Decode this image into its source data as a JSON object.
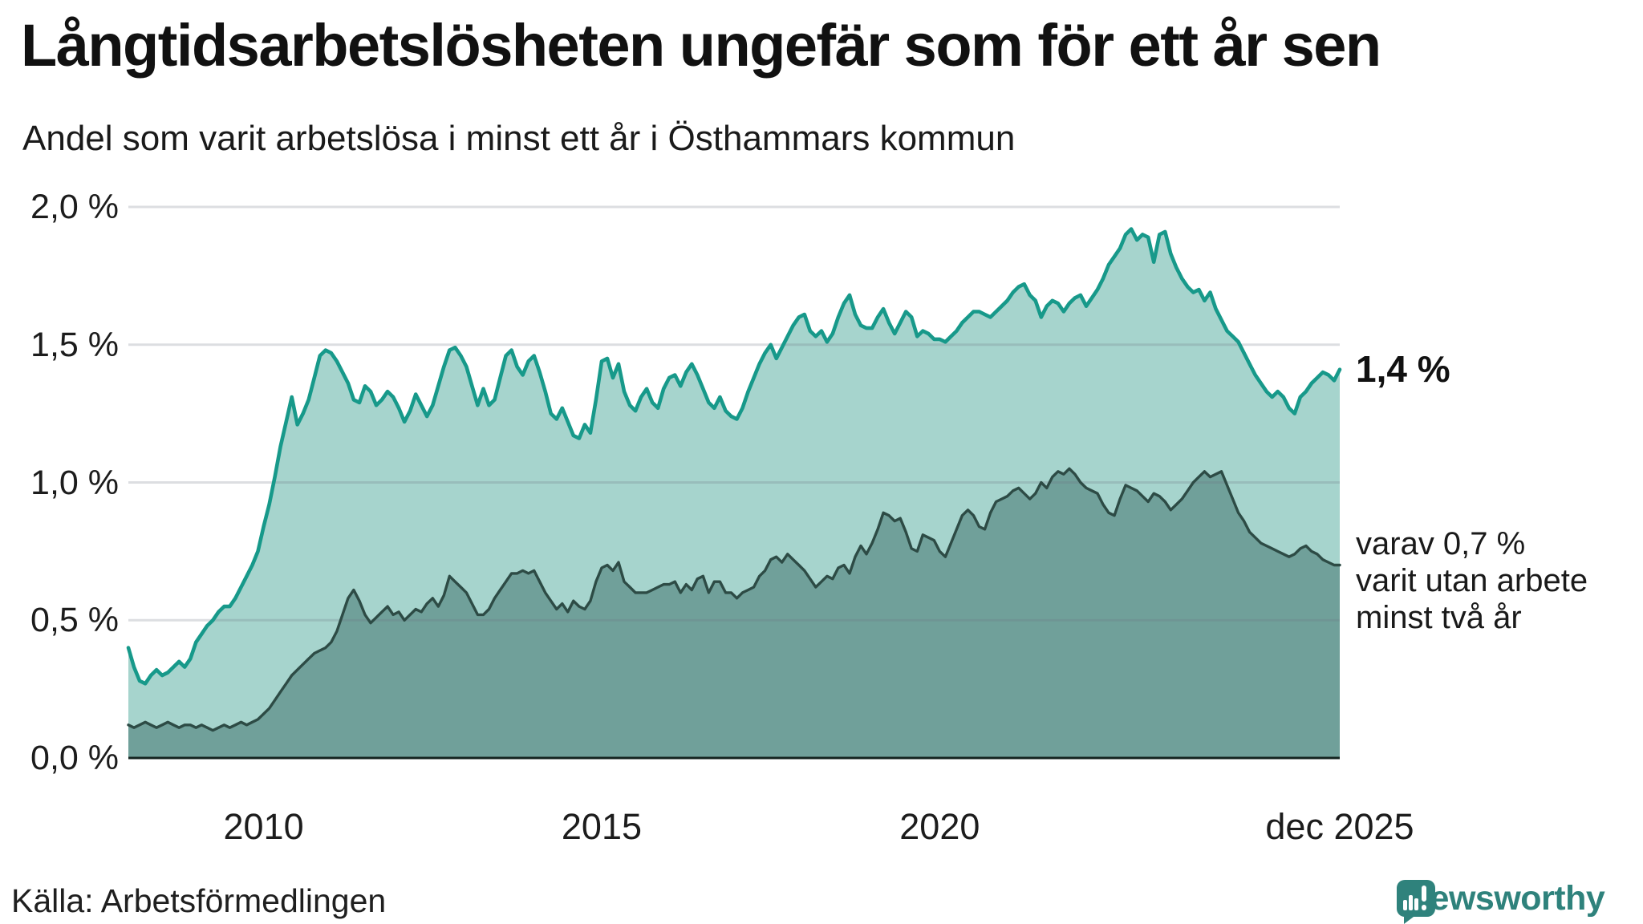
{
  "title": "Långtidsarbetslösheten ungefär som för ett år sen",
  "subtitle": "Andel som varit arbetslösa i minst ett år i Östhammars kommun",
  "source": "Källa: Arbetsförmedlingen",
  "logo": {
    "text": "Newsworthy"
  },
  "annotations": {
    "latest_total": "1,4 %",
    "secondary_lines": [
      "varav 0,7 %",
      "varit utan arbete",
      "minst två år"
    ]
  },
  "colors": {
    "line_total": "#17998a",
    "fill_total": "#a6d4cd",
    "line_two_year": "#2d4b45",
    "fill_two_year": "#70a09a",
    "grid_overlay": "rgba(108,116,130,0.24)",
    "axis_line": "#13231f",
    "brand_teal": "#2f827c",
    "text": "#1a1a1a"
  },
  "chart_data": {
    "type": "area",
    "title": "Långtidsarbetslösheten ungefär som för ett år sen",
    "subtitle": "Andel som varit arbetslösa i minst ett år i Östhammars kommun",
    "unit": "%",
    "x_start": "2008-01",
    "x_end": "2025-12",
    "points_per_year": 12,
    "ylim": [
      0,
      2
    ],
    "grid": true,
    "y_ticks": [
      {
        "value": 0.0,
        "label": "0,0 %"
      },
      {
        "value": 0.5,
        "label": "0,5 %"
      },
      {
        "value": 1.0,
        "label": "1,0 %"
      },
      {
        "value": 1.5,
        "label": "1,5 %"
      },
      {
        "value": 2.0,
        "label": "2,0 %"
      }
    ],
    "x_ticks": [
      {
        "year": 2010.0,
        "label": "2010"
      },
      {
        "year": 2015.0,
        "label": "2015"
      },
      {
        "year": 2020.0,
        "label": "2020"
      },
      {
        "year": 2025.9167,
        "label": "dec 2025"
      }
    ],
    "series": [
      {
        "name": "Andel som varit arbetslösa minst ett år",
        "last_value_label": "1,4 %",
        "values": [
          0.4,
          0.33,
          0.28,
          0.27,
          0.3,
          0.32,
          0.3,
          0.31,
          0.33,
          0.35,
          0.33,
          0.36,
          0.42,
          0.45,
          0.48,
          0.5,
          0.53,
          0.55,
          0.55,
          0.58,
          0.62,
          0.66,
          0.7,
          0.75,
          0.84,
          0.92,
          1.02,
          1.13,
          1.22,
          1.31,
          1.21,
          1.25,
          1.3,
          1.38,
          1.46,
          1.48,
          1.47,
          1.44,
          1.4,
          1.36,
          1.3,
          1.29,
          1.35,
          1.33,
          1.28,
          1.3,
          1.33,
          1.31,
          1.27,
          1.22,
          1.26,
          1.32,
          1.28,
          1.24,
          1.28,
          1.35,
          1.42,
          1.48,
          1.49,
          1.46,
          1.42,
          1.35,
          1.28,
          1.34,
          1.28,
          1.3,
          1.38,
          1.46,
          1.48,
          1.42,
          1.39,
          1.44,
          1.46,
          1.4,
          1.33,
          1.25,
          1.23,
          1.27,
          1.22,
          1.17,
          1.16,
          1.21,
          1.18,
          1.3,
          1.44,
          1.45,
          1.38,
          1.43,
          1.33,
          1.28,
          1.26,
          1.31,
          1.34,
          1.29,
          1.27,
          1.34,
          1.38,
          1.39,
          1.35,
          1.4,
          1.43,
          1.39,
          1.34,
          1.29,
          1.27,
          1.31,
          1.26,
          1.24,
          1.23,
          1.27,
          1.33,
          1.38,
          1.43,
          1.47,
          1.5,
          1.45,
          1.49,
          1.53,
          1.57,
          1.6,
          1.61,
          1.55,
          1.53,
          1.55,
          1.51,
          1.54,
          1.6,
          1.65,
          1.68,
          1.61,
          1.57,
          1.56,
          1.56,
          1.6,
          1.63,
          1.58,
          1.54,
          1.58,
          1.62,
          1.6,
          1.53,
          1.55,
          1.54,
          1.52,
          1.52,
          1.51,
          1.53,
          1.55,
          1.58,
          1.6,
          1.62,
          1.62,
          1.61,
          1.6,
          1.62,
          1.64,
          1.66,
          1.69,
          1.71,
          1.72,
          1.68,
          1.66,
          1.6,
          1.64,
          1.66,
          1.65,
          1.62,
          1.65,
          1.67,
          1.68,
          1.64,
          1.67,
          1.7,
          1.74,
          1.79,
          1.82,
          1.85,
          1.9,
          1.92,
          1.88,
          1.9,
          1.89,
          1.8,
          1.9,
          1.91,
          1.83,
          1.78,
          1.74,
          1.71,
          1.69,
          1.7,
          1.66,
          1.69,
          1.63,
          1.59,
          1.55,
          1.53,
          1.51,
          1.47,
          1.43,
          1.39,
          1.36,
          1.33,
          1.31,
          1.33,
          1.31,
          1.27,
          1.25,
          1.31,
          1.33,
          1.36,
          1.38,
          1.4,
          1.39,
          1.37,
          1.41
        ]
      },
      {
        "name": "varav utan arbete minst två år",
        "last_value_label": "0,7 %",
        "values": [
          0.12,
          0.11,
          0.12,
          0.13,
          0.12,
          0.11,
          0.12,
          0.13,
          0.12,
          0.11,
          0.12,
          0.12,
          0.11,
          0.12,
          0.11,
          0.1,
          0.11,
          0.12,
          0.11,
          0.12,
          0.13,
          0.12,
          0.13,
          0.14,
          0.16,
          0.18,
          0.21,
          0.24,
          0.27,
          0.3,
          0.32,
          0.34,
          0.36,
          0.38,
          0.39,
          0.4,
          0.42,
          0.46,
          0.52,
          0.58,
          0.61,
          0.57,
          0.52,
          0.49,
          0.51,
          0.53,
          0.55,
          0.52,
          0.53,
          0.5,
          0.52,
          0.54,
          0.53,
          0.56,
          0.58,
          0.55,
          0.59,
          0.66,
          0.64,
          0.62,
          0.6,
          0.56,
          0.52,
          0.52,
          0.54,
          0.58,
          0.61,
          0.64,
          0.67,
          0.67,
          0.68,
          0.67,
          0.68,
          0.64,
          0.6,
          0.57,
          0.54,
          0.56,
          0.53,
          0.57,
          0.55,
          0.54,
          0.57,
          0.64,
          0.69,
          0.7,
          0.68,
          0.71,
          0.64,
          0.62,
          0.6,
          0.6,
          0.6,
          0.61,
          0.62,
          0.63,
          0.63,
          0.64,
          0.6,
          0.63,
          0.61,
          0.65,
          0.66,
          0.6,
          0.64,
          0.64,
          0.6,
          0.6,
          0.58,
          0.6,
          0.61,
          0.62,
          0.66,
          0.68,
          0.72,
          0.73,
          0.71,
          0.74,
          0.72,
          0.7,
          0.68,
          0.65,
          0.62,
          0.64,
          0.66,
          0.65,
          0.69,
          0.7,
          0.67,
          0.73,
          0.77,
          0.74,
          0.78,
          0.83,
          0.89,
          0.88,
          0.86,
          0.87,
          0.82,
          0.76,
          0.75,
          0.81,
          0.8,
          0.79,
          0.75,
          0.73,
          0.78,
          0.83,
          0.88,
          0.9,
          0.88,
          0.84,
          0.83,
          0.89,
          0.93,
          0.94,
          0.95,
          0.97,
          0.98,
          0.96,
          0.94,
          0.96,
          1.0,
          0.98,
          1.02,
          1.04,
          1.03,
          1.05,
          1.03,
          1.0,
          0.98,
          0.97,
          0.96,
          0.92,
          0.89,
          0.88,
          0.94,
          0.99,
          0.98,
          0.97,
          0.95,
          0.93,
          0.96,
          0.95,
          0.93,
          0.9,
          0.92,
          0.94,
          0.97,
          1.0,
          1.02,
          1.04,
          1.02,
          1.03,
          1.04,
          0.99,
          0.94,
          0.89,
          0.86,
          0.82,
          0.8,
          0.78,
          0.77,
          0.76,
          0.75,
          0.74,
          0.73,
          0.74,
          0.76,
          0.77,
          0.75,
          0.74,
          0.72,
          0.71,
          0.7,
          0.7
        ]
      }
    ]
  }
}
